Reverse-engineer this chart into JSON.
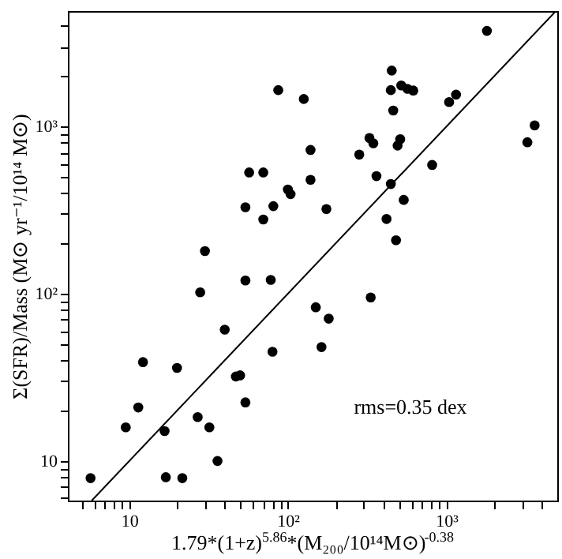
{
  "chart_data": {
    "type": "scatter",
    "xlabel": "1.79*(1+z)$^{5.86}$*(M₂₀₀/10¹⁴M⊙)$^{-0.38}$",
    "ylabel": "Σ(SFR)/Mass (M⊙ yr⁻¹/10¹⁴ M⊙)",
    "log": "xy",
    "grid": false,
    "marker": "circle",
    "xlim": [
      4.1,
      5000
    ],
    "ylim": [
      5.8,
      4900
    ],
    "xticks": [
      {
        "value": 5,
        "label": null
      },
      {
        "value": 6,
        "label": null
      },
      {
        "value": 7,
        "label": null
      },
      {
        "value": 8,
        "label": null
      },
      {
        "value": 9,
        "label": null
      },
      10,
      {
        "value": 20,
        "label": null
      },
      {
        "value": 30,
        "label": null
      },
      {
        "value": 40,
        "label": null
      },
      {
        "value": 50,
        "label": null
      },
      {
        "value": 60,
        "label": null
      },
      {
        "value": 70,
        "label": null
      },
      {
        "value": 80,
        "label": null
      },
      {
        "value": 90,
        "label": null
      },
      {
        "value": 100,
        "label": "10²"
      },
      {
        "value": 200,
        "label": null
      },
      {
        "value": 300,
        "label": null
      },
      {
        "value": 400,
        "label": null
      },
      {
        "value": 500,
        "label": null
      },
      {
        "value": 600,
        "label": null
      },
      {
        "value": 700,
        "label": null
      },
      {
        "value": 800,
        "label": null
      },
      {
        "value": 900,
        "label": null
      },
      {
        "value": 1000,
        "label": "10³"
      },
      {
        "value": 2000,
        "label": null
      },
      {
        "value": 3000,
        "label": null
      },
      {
        "value": 4000,
        "label": null
      }
    ],
    "yticks": [
      {
        "value": 6,
        "label": null
      },
      {
        "value": 7,
        "label": null
      },
      {
        "value": 8,
        "label": null
      },
      {
        "value": 9,
        "label": null
      },
      10,
      {
        "value": 20,
        "label": null
      },
      {
        "value": 30,
        "label": null
      },
      {
        "value": 40,
        "label": null
      },
      {
        "value": 50,
        "label": null
      },
      {
        "value": 60,
        "label": null
      },
      {
        "value": 70,
        "label": null
      },
      {
        "value": 80,
        "label": null
      },
      {
        "value": 90,
        "label": null
      },
      {
        "value": 100,
        "label": "10²"
      },
      {
        "value": 200,
        "label": null
      },
      {
        "value": 300,
        "label": null
      },
      {
        "value": 400,
        "label": null
      },
      {
        "value": 500,
        "label": null
      },
      {
        "value": 600,
        "label": null
      },
      {
        "value": 700,
        "label": null
      },
      {
        "value": 800,
        "label": null
      },
      {
        "value": 900,
        "label": null
      },
      {
        "value": 1000,
        "label": "10³"
      },
      {
        "value": 2000,
        "label": null
      },
      {
        "value": 3000,
        "label": null
      },
      {
        "value": 4000,
        "label": null
      }
    ],
    "series": [
      {
        "color": "#000000",
        "x": [
          1800,
          452,
          87,
          126,
          446,
          519,
          568,
          618,
          462,
          1040,
          1150,
          3600,
          3240,
          327,
          346,
          511,
          492,
          282,
          139,
          57,
          70,
          813,
          362,
          139,
          446,
          100,
          104,
          54,
          81,
          538,
          175,
          70,
          419,
          481,
          30,
          54,
          78,
          28,
          150,
          333,
          181,
          40,
          80,
          163,
          12.2,
          20,
          47,
          50,
          54,
          11.4,
          9.5,
          16.7,
          27,
          32,
          36,
          5.7,
          17,
          21.6
        ],
        "values": [
          3730,
          2160,
          1650,
          1460,
          1650,
          1760,
          1680,
          1640,
          1245,
          1400,
          1550,
          1015,
          805,
          853,
          793,
          840,
          769,
          679,
          724,
          531,
          531,
          589,
          505,
          480,
          453,
          420,
          394,
          329,
          334,
          364,
          321,
          278,
          280,
          209,
          180,
          120,
          121,
          102,
          83,
          95,
          71,
          61,
          45,
          48,
          39,
          36,
          32,
          32.5,
          22.4,
          20.9,
          15.9,
          15.1,
          18.3,
          15.9,
          10,
          7.9,
          8.0,
          7.9
        ]
      },
      {
        "type": "line",
        "color": "#000000",
        "marker": "none",
        "line_style": "solid",
        "x": [
          5.8,
          4900
        ],
        "values": [
          5.8,
          4900
        ]
      }
    ],
    "annotations": [
      "rms=0.35 dex"
    ]
  }
}
